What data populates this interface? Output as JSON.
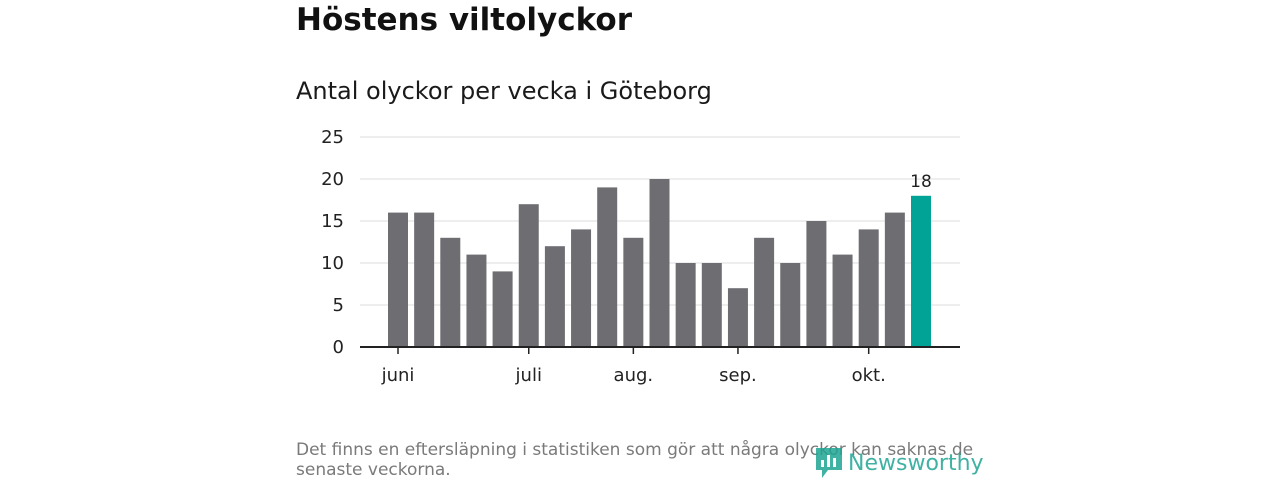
{
  "header": {
    "title": "Höstens viltolyckor",
    "subtitle": "Antal olyckor per vecka i Göteborg"
  },
  "footer": {
    "note": "Det finns en eftersläpning i statistiken som gör att några olyckor kan saknas de senaste veckorna."
  },
  "logo": {
    "text": "Newsworthy",
    "icon": "newsworthy-logo-icon"
  },
  "colors": {
    "bar": "#6e6d72",
    "highlight": "#00a396",
    "grid": "#dcdcdc",
    "axis": "#222222",
    "brand": "#1fa593"
  },
  "chart_data": {
    "type": "bar",
    "title": "Antal olyckor per vecka i Göteborg",
    "xlabel": "",
    "ylabel": "",
    "ylim": [
      0,
      25
    ],
    "yticks": [
      0,
      5,
      10,
      15,
      20,
      25
    ],
    "values": [
      16,
      16,
      13,
      11,
      9,
      17,
      12,
      14,
      19,
      13,
      20,
      10,
      10,
      7,
      13,
      10,
      15,
      11,
      14,
      16,
      18
    ],
    "highlight_index": 20,
    "highlight_label": "18",
    "month_labels": [
      {
        "label": "juni",
        "bar_index": 0
      },
      {
        "label": "juli",
        "bar_index": 5
      },
      {
        "label": "aug.",
        "bar_index": 9
      },
      {
        "label": "sep.",
        "bar_index": 13
      },
      {
        "label": "okt.",
        "bar_index": 18
      }
    ],
    "grid": true
  }
}
